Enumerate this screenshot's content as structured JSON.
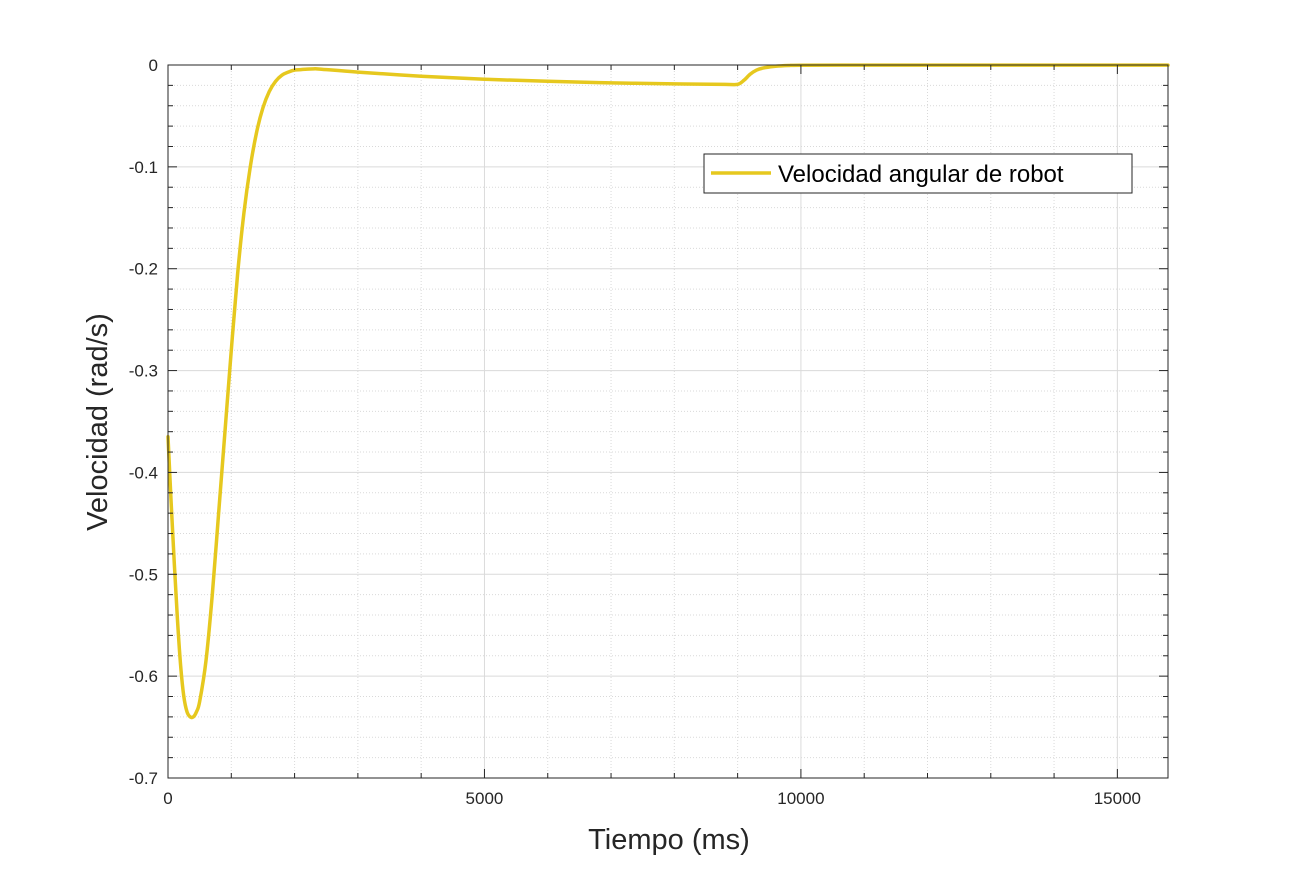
{
  "chart_data": {
    "type": "line",
    "title": "",
    "xlabel": "Tiempo (ms)",
    "ylabel": "Velocidad (rad/s)",
    "xlim": [
      0,
      15800
    ],
    "ylim": [
      -0.7,
      0
    ],
    "xticks": [
      0,
      5000,
      10000,
      15000
    ],
    "xtick_labels": [
      "0",
      "5000",
      "10000",
      "15000"
    ],
    "yticks": [
      0,
      -0.1,
      -0.2,
      -0.3,
      -0.4,
      -0.5,
      -0.6,
      -0.7
    ],
    "ytick_labels": [
      "0",
      "-0.1",
      "-0.2",
      "-0.3",
      "-0.4",
      "-0.5",
      "-0.6",
      "-0.7"
    ],
    "grid": true,
    "minor_grid": true,
    "legend_position": "top-right",
    "series": [
      {
        "name": "Velocidad angular de robot",
        "color": "#e6c81e",
        "x": [
          0,
          50,
          100,
          150,
          200,
          250,
          300,
          350,
          400,
          450,
          500,
          600,
          700,
          800,
          900,
          1000,
          1100,
          1200,
          1300,
          1400,
          1500,
          1600,
          1700,
          1800,
          1900,
          2000,
          2100,
          2200,
          2300,
          2400,
          3000,
          4000,
          5000,
          6000,
          7000,
          8000,
          8800,
          9000,
          9100,
          9200,
          9300,
          9400,
          9500,
          9600,
          9800,
          10000,
          11000,
          12000,
          13000,
          14000,
          15000,
          15800
        ],
        "y": [
          -0.365,
          -0.43,
          -0.49,
          -0.545,
          -0.59,
          -0.62,
          -0.635,
          -0.64,
          -0.64,
          -0.635,
          -0.625,
          -0.585,
          -0.52,
          -0.44,
          -0.36,
          -0.28,
          -0.205,
          -0.145,
          -0.1,
          -0.066,
          -0.042,
          -0.026,
          -0.016,
          -0.01,
          -0.007,
          -0.005,
          -0.0045,
          -0.004,
          -0.0038,
          -0.004,
          -0.007,
          -0.011,
          -0.014,
          -0.016,
          -0.0175,
          -0.0185,
          -0.019,
          -0.019,
          -0.015,
          -0.009,
          -0.005,
          -0.003,
          -0.002,
          -0.0012,
          -0.0005,
          -0.0002,
          -0.0001,
          -0.0001,
          -0.0001,
          -0.0001,
          -0.0001,
          -0.0001
        ]
      }
    ]
  }
}
